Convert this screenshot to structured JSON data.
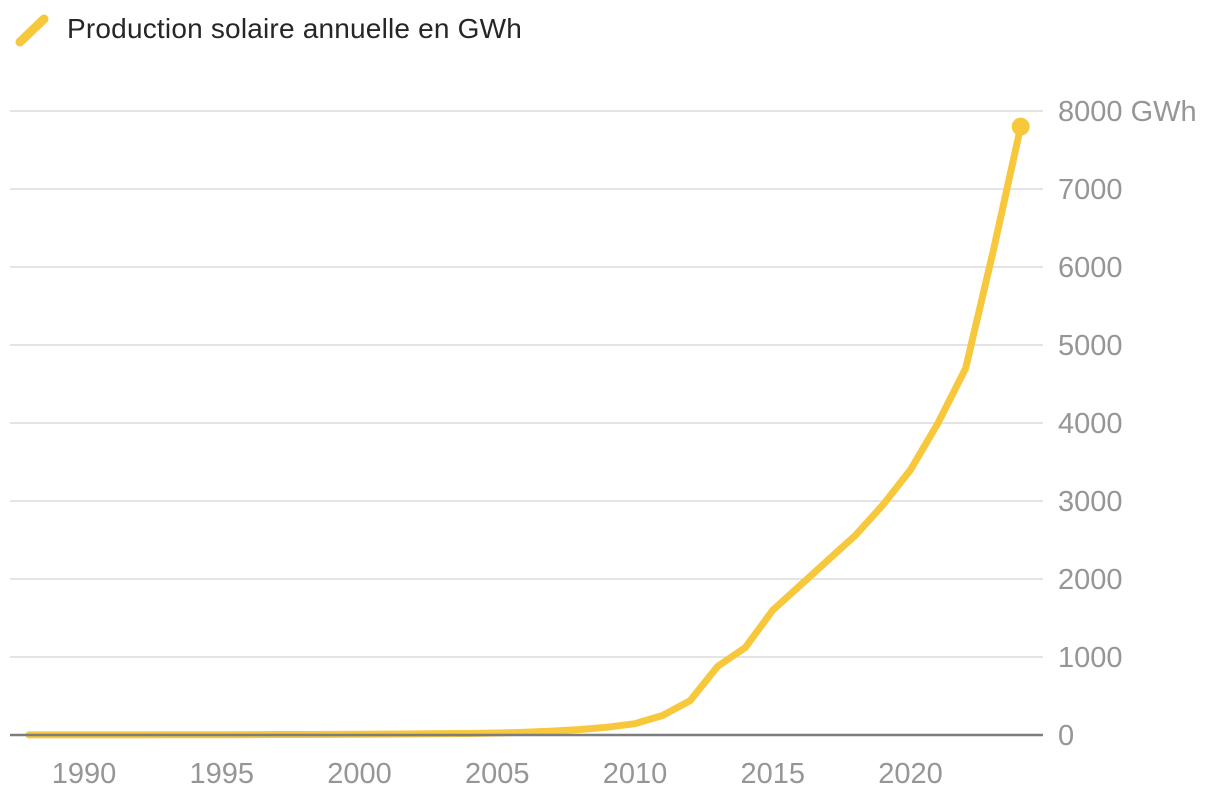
{
  "legend": {
    "label": "Production solaire annuelle en GWh"
  },
  "colors": {
    "line": "#F8C83C",
    "grid": "#DCDCDC",
    "axis": "#7D7D7D",
    "tick_text": "#969696",
    "legend_text": "#262626",
    "background": "#FFFFFF"
  },
  "chart_data": {
    "type": "line",
    "title": "Production solaire annuelle en GWh",
    "series_name": "Production solaire annuelle en GWh",
    "unit": "GWh",
    "x": [
      1988,
      1989,
      1990,
      1991,
      1992,
      1993,
      1994,
      1995,
      1996,
      1997,
      1998,
      1999,
      2000,
      2001,
      2002,
      2003,
      2004,
      2005,
      2006,
      2007,
      2008,
      2009,
      2010,
      2011,
      2012,
      2013,
      2014,
      2015,
      2016,
      2017,
      2018,
      2019,
      2020,
      2021,
      2022,
      2023,
      2024
    ],
    "values": [
      1,
      1,
      1,
      2,
      2,
      3,
      3,
      4,
      5,
      6,
      7,
      8,
      10,
      12,
      14,
      17,
      20,
      25,
      35,
      50,
      70,
      100,
      145,
      250,
      440,
      880,
      1120,
      1600,
      1920,
      2240,
      2560,
      2950,
      3400,
      4000,
      4700,
      6200,
      7800
    ],
    "xlim": [
      1988,
      2024
    ],
    "ylim": [
      0,
      8000
    ],
    "x_ticks": [
      1990,
      1995,
      2000,
      2005,
      2010,
      2015,
      2020
    ],
    "x_tick_labels": [
      "1990",
      "1995",
      "2000",
      "2005",
      "2010",
      "2015",
      "2020"
    ],
    "y_ticks": [
      0,
      1000,
      2000,
      3000,
      4000,
      5000,
      6000,
      7000,
      8000
    ],
    "y_tick_labels": [
      "0",
      "1000",
      "2000",
      "3000",
      "4000",
      "5000",
      "6000",
      "7000",
      "8000 GWh"
    ],
    "grid": "horizontal",
    "legend_position": "top-left",
    "marker": "circle-on-last-point"
  }
}
